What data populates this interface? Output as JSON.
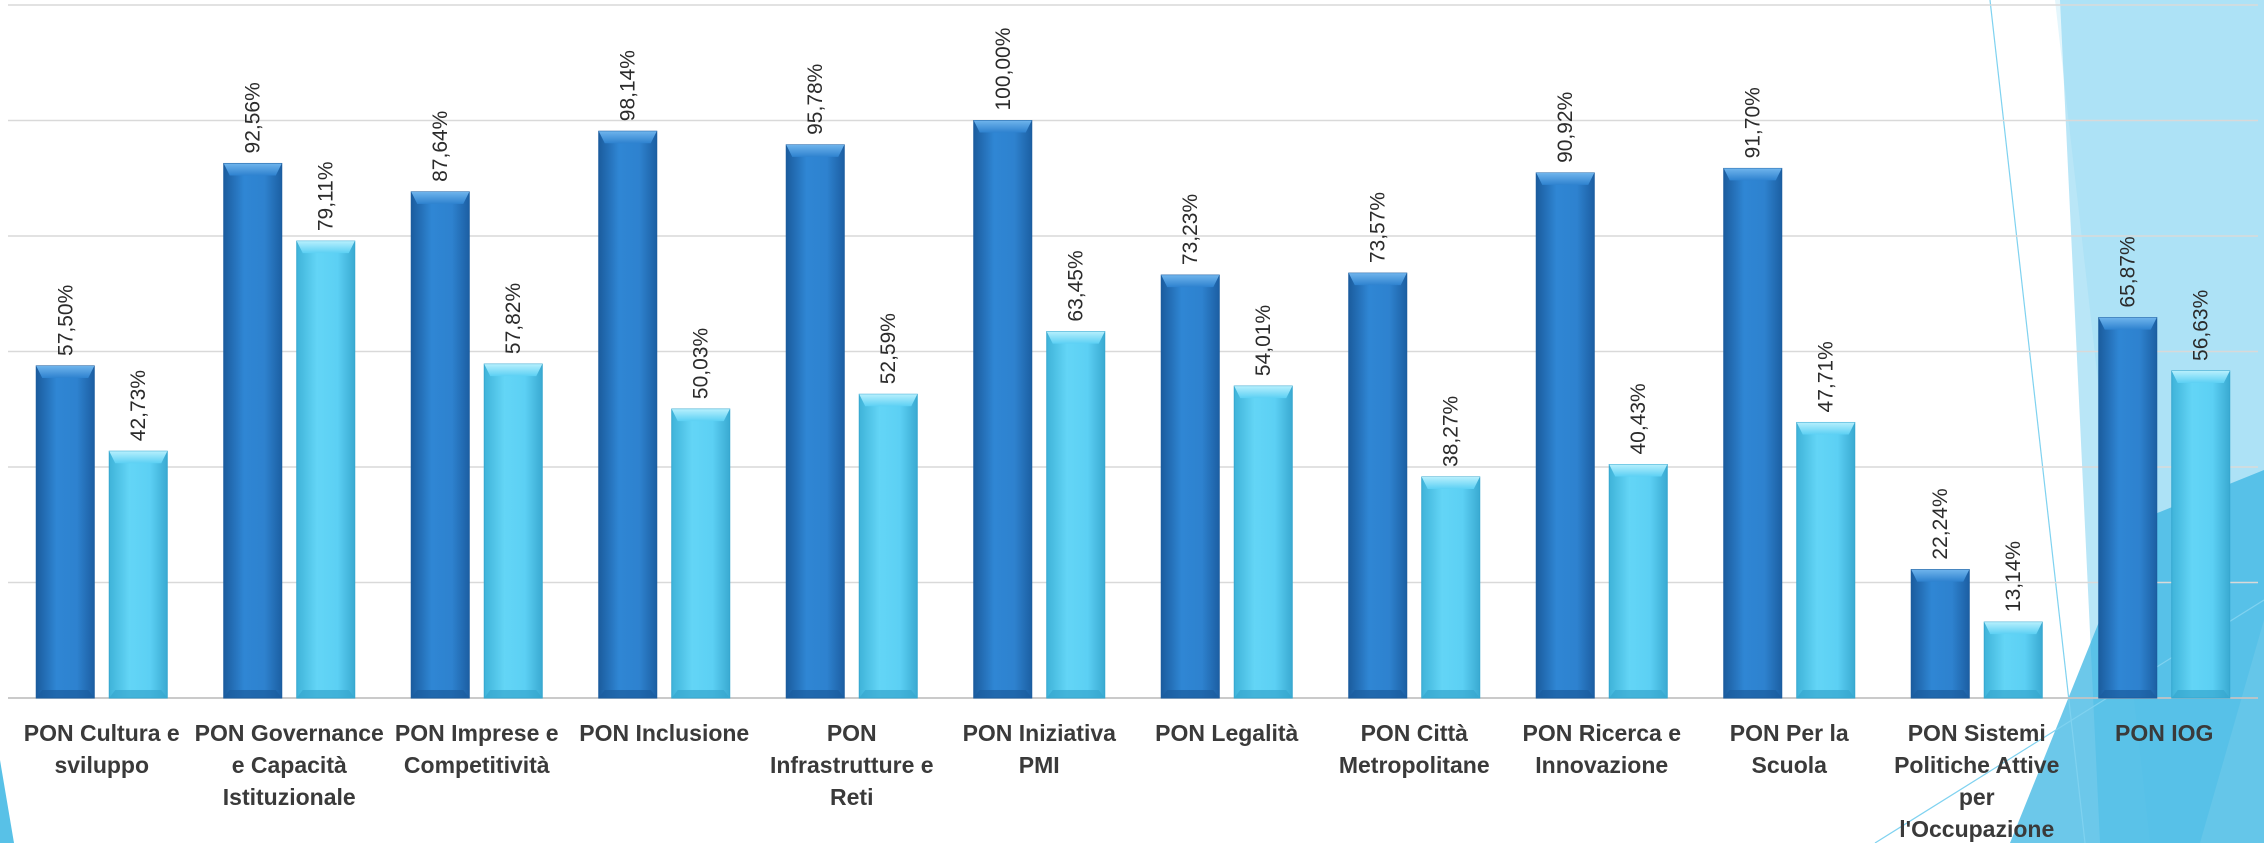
{
  "chart_data": {
    "type": "bar",
    "title": "",
    "xlabel": "",
    "ylabel": "",
    "ylim": [
      0,
      120
    ],
    "grid": true,
    "legend": "none",
    "categories": [
      [
        "PON Cultura e",
        "sviluppo"
      ],
      [
        "PON Governance",
        "e Capacità",
        "Istituzionale"
      ],
      [
        "PON Imprese e",
        "Competitività"
      ],
      [
        "PON Inclusione"
      ],
      [
        "PON",
        "Infrastrutture e",
        "Reti"
      ],
      [
        "PON Iniziativa",
        "PMI"
      ],
      [
        "PON Legalità"
      ],
      [
        "PON Città",
        "Metropolitane"
      ],
      [
        "PON Ricerca e",
        "Innovazione"
      ],
      [
        "PON Per la",
        "Scuola"
      ],
      [
        "PON Sistemi",
        "Politiche Attive",
        "per",
        "l'Occupazione"
      ],
      [
        "PON IOG"
      ]
    ],
    "series": [
      {
        "values": [
          57.5,
          92.56,
          87.64,
          98.14,
          95.78,
          100.0,
          73.23,
          73.57,
          90.92,
          91.7,
          22.24,
          65.87
        ],
        "labels": [
          "57,50%",
          "92,56%",
          "87,64%",
          "98,14%",
          "95,78%",
          "100,00%",
          "73,23%",
          "73,57%",
          "90,92%",
          "91,70%",
          "22,24%",
          "65,87%"
        ],
        "color": "#2e82cf"
      },
      {
        "values": [
          42.73,
          79.11,
          57.82,
          50.03,
          52.59,
          63.45,
          54.01,
          38.27,
          40.43,
          47.71,
          13.14,
          56.63
        ],
        "labels": [
          "42,73%",
          "79,11%",
          "57,82%",
          "50,03%",
          "52,59%",
          "63,45%",
          "54,01%",
          "38,27%",
          "40,43%",
          "47,71%",
          "13,14%",
          "56,63%"
        ],
        "color": "#5cd0f4"
      }
    ]
  },
  "colors": {
    "series1": "#2e82cf",
    "series1_dark": "#1b5c9e",
    "series2": "#5cd0f4",
    "series2_dark": "#36a7cf",
    "gridline": "#d9d9d9",
    "decor_light": "#cdeefa",
    "decor_mid": "#7fd2f0",
    "decor_dark": "#3bb6e3"
  }
}
